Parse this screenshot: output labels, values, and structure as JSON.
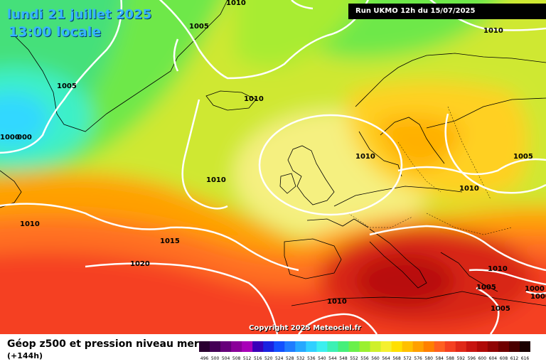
{
  "header": {
    "date": "lundi 21 juillet 2025",
    "local_time": "13:00 locale",
    "run_info": "Run UKMO 12h du 15/07/2025"
  },
  "footer": {
    "title": "Géop z500 et pression niveau mer",
    "lead_time": "(+144h)",
    "copyright": "Copyright 2025 Meteociel.fr"
  },
  "isobar_labels": [
    "1010",
    "1005",
    "1010",
    "1005",
    "1000",
    "000",
    "1010",
    "1010",
    "1010",
    "1010",
    "1005",
    "1010",
    "1015",
    "1020",
    "1010",
    "1010",
    "1005",
    "1005",
    "1000",
    "1000"
  ],
  "color_scale": {
    "values": [
      "496",
      "500",
      "504",
      "508",
      "512",
      "516",
      "520",
      "524",
      "528",
      "532",
      "536",
      "540",
      "544",
      "548",
      "552",
      "556",
      "560",
      "564",
      "568",
      "572",
      "576",
      "580",
      "584",
      "588",
      "592",
      "596",
      "600",
      "604",
      "608",
      "612",
      "616"
    ],
    "colors": [
      "#2a0030",
      "#440055",
      "#66007a",
      "#8a0099",
      "#a800b8",
      "#3a00b8",
      "#1a22e0",
      "#1250ff",
      "#1f7cff",
      "#26a8ff",
      "#30d0ff",
      "#3cefef",
      "#3cf0b4",
      "#45ef7a",
      "#6af04a",
      "#9af030",
      "#cff02a",
      "#f5f030",
      "#ffe000",
      "#ffc000",
      "#ffa000",
      "#ff8000",
      "#ff6020",
      "#f54020",
      "#e02818",
      "#c81410",
      "#b00a08",
      "#900404",
      "#700000",
      "#4a0000",
      "#1a0000"
    ]
  }
}
